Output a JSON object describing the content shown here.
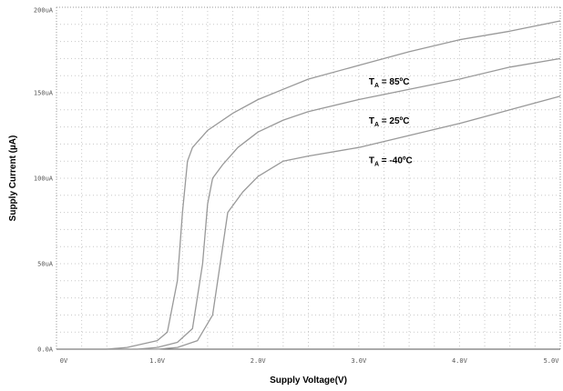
{
  "chart_data": {
    "type": "line",
    "title": "",
    "xlabel": "Supply Voltage(V)",
    "ylabel": "Supply Current (µA)",
    "xlim": [
      0,
      5
    ],
    "ylim": [
      0,
      200
    ],
    "x_ticks": [
      0,
      1,
      2,
      3,
      4,
      5
    ],
    "x_tick_labels": [
      "0V",
      "1.0V",
      "2.0V",
      "3.0V",
      "4.0V",
      "5.0V"
    ],
    "y_ticks": [
      0,
      50,
      100,
      150,
      200
    ],
    "y_tick_labels": [
      "0.0A",
      "50uA",
      "100uA",
      "150uA",
      "200uA"
    ],
    "grid": true,
    "series": [
      {
        "label_main": "T",
        "label_sub": "A",
        "label_rest": " = 85ºC",
        "color": "#999999",
        "x": [
          0,
          0.5,
          0.7,
          1.0,
          1.1,
          1.2,
          1.25,
          1.3,
          1.35,
          1.5,
          1.75,
          2.0,
          2.25,
          2.5,
          3.0,
          3.5,
          4.0,
          4.5,
          5.0
        ],
        "y": [
          0,
          0,
          1,
          5,
          10,
          40,
          80,
          110,
          118,
          128,
          138,
          146,
          152,
          158,
          166,
          174,
          181,
          186,
          192
        ]
      },
      {
        "label_main": "T",
        "label_sub": "A",
        "label_rest": " = 25ºC",
        "color": "#999999",
        "x": [
          0,
          0.8,
          1.0,
          1.2,
          1.35,
          1.45,
          1.5,
          1.55,
          1.65,
          1.8,
          2.0,
          2.25,
          2.5,
          3.0,
          3.5,
          4.0,
          4.5,
          5.0
        ],
        "y": [
          0,
          0,
          1,
          4,
          12,
          50,
          85,
          100,
          108,
          118,
          127,
          134,
          139,
          146,
          152,
          158,
          165,
          170
        ]
      },
      {
        "label_main": "T",
        "label_sub": "A",
        "label_rest": " = -40ºC",
        "color": "#999999",
        "x": [
          0,
          1.0,
          1.2,
          1.4,
          1.55,
          1.65,
          1.7,
          1.75,
          1.85,
          2.0,
          2.25,
          2.5,
          3.0,
          3.5,
          4.0,
          4.5,
          5.0
        ],
        "y": [
          0,
          0,
          1,
          5,
          20,
          60,
          80,
          84,
          92,
          101,
          110,
          113,
          118,
          125,
          132,
          140,
          148
        ]
      }
    ]
  }
}
